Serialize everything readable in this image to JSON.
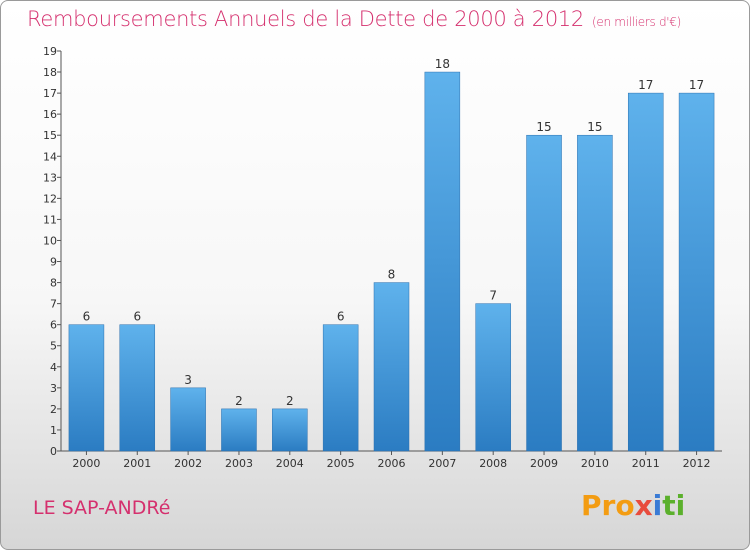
{
  "chart_data": {
    "type": "bar",
    "title": "Remboursements Annuels de la Dette de 2000 à 2012",
    "subtitle": "(en milliers d'€)",
    "categories": [
      "2000",
      "2001",
      "2002",
      "2003",
      "2004",
      "2005",
      "2006",
      "2007",
      "2008",
      "2009",
      "2010",
      "2011",
      "2012"
    ],
    "values": [
      6,
      6,
      3,
      2,
      2,
      6,
      8,
      18,
      7,
      15,
      15,
      17,
      17
    ],
    "data_labels": [
      "6",
      "6",
      "3",
      "2",
      "2",
      "6",
      "8",
      "18",
      "7",
      "15",
      "15",
      "17",
      "17"
    ],
    "yticks": [
      0,
      1,
      2,
      3,
      4,
      5,
      6,
      7,
      8,
      9,
      10,
      11,
      12,
      13,
      14,
      15,
      16,
      17,
      18,
      19
    ],
    "ylim": [
      0,
      19
    ],
    "xlabel": "",
    "ylabel": "",
    "grid": false,
    "bar_color": "#4a9fe0"
  },
  "footer": {
    "commune": "LE SAP-ANDRé",
    "logo_parts": [
      "Pro",
      "x",
      "i",
      "ti"
    ]
  }
}
